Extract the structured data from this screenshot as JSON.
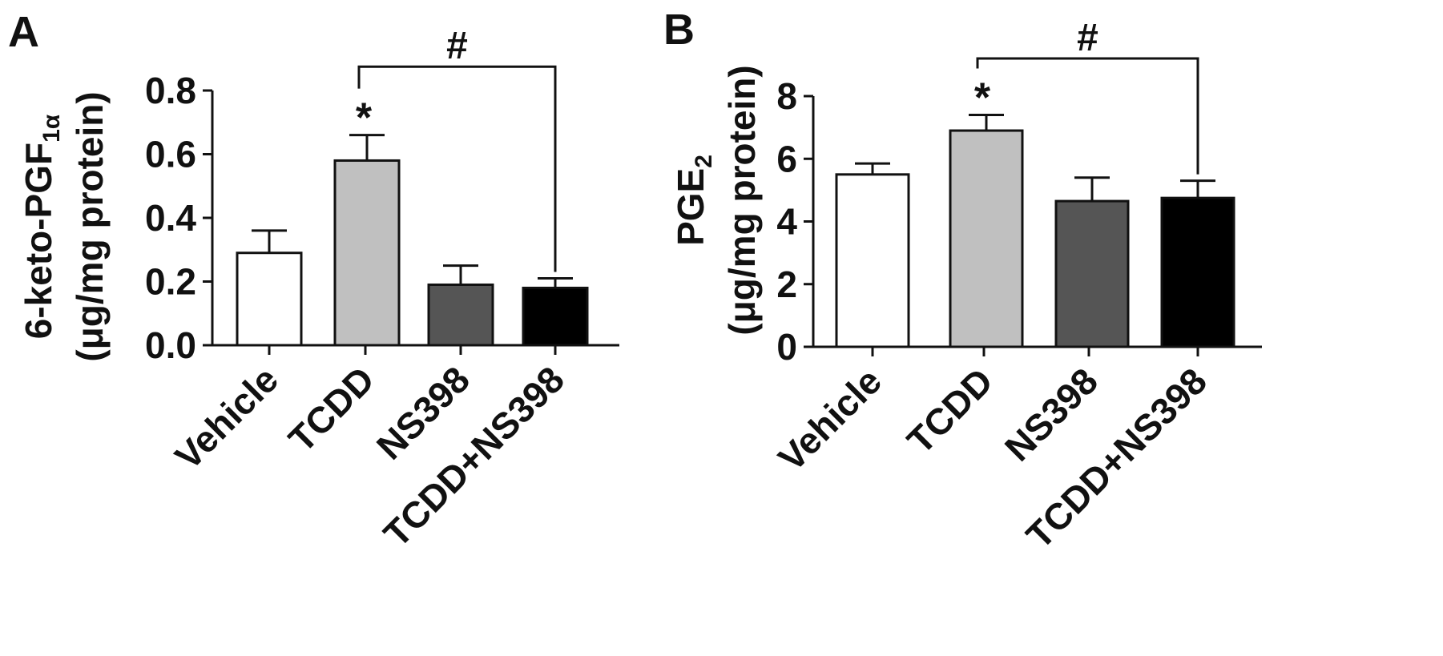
{
  "chart_data": [
    {
      "type": "bar",
      "panel_label": "A",
      "ylabel": "6-keto-PGF1α (μg/mg protein)",
      "ylabel_parts": {
        "line1_main": "6-keto-PGF",
        "line1_sub": "1α",
        "line2": "(μg/mg protein)"
      },
      "ylim": [
        0,
        0.8
      ],
      "yticks": [
        "0.0",
        "0.2",
        "0.4",
        "0.6",
        "0.8"
      ],
      "categories": [
        "Vehicle",
        "TCDD",
        "NS398",
        "TCDD+NS398"
      ],
      "values": [
        0.29,
        0.58,
        0.19,
        0.18
      ],
      "errors": [
        0.07,
        0.08,
        0.06,
        0.03
      ],
      "bar_colors": [
        "#ffffff",
        "#c0c0c0",
        "#555555",
        "#000000"
      ],
      "annotations": [
        {
          "type": "star",
          "text": "*",
          "category": "TCDD"
        },
        {
          "type": "bracket",
          "text": "#",
          "from": "TCDD",
          "to": "TCDD+NS398",
          "y": 0.875
        }
      ]
    },
    {
      "type": "bar",
      "panel_label": "B",
      "ylabel": "PGE2 (μg/mg protein)",
      "ylabel_parts": {
        "line1_main": "PGE",
        "line1_sub": "2",
        "line2": "(μg/mg protein)"
      },
      "ylim": [
        0,
        8
      ],
      "yticks": [
        "0",
        "2",
        "4",
        "6",
        "8"
      ],
      "categories": [
        "Vehicle",
        "TCDD",
        "NS398",
        "TCDD+NS398"
      ],
      "values": [
        5.5,
        6.9,
        4.65,
        4.75
      ],
      "errors": [
        0.35,
        0.5,
        0.75,
        0.55
      ],
      "bar_colors": [
        "#ffffff",
        "#c0c0c0",
        "#555555",
        "#000000"
      ],
      "annotations": [
        {
          "type": "star",
          "text": "*",
          "category": "TCDD"
        },
        {
          "type": "bracket",
          "text": "#",
          "from": "TCDD",
          "to": "TCDD+NS398",
          "y": 9.2
        }
      ]
    }
  ]
}
